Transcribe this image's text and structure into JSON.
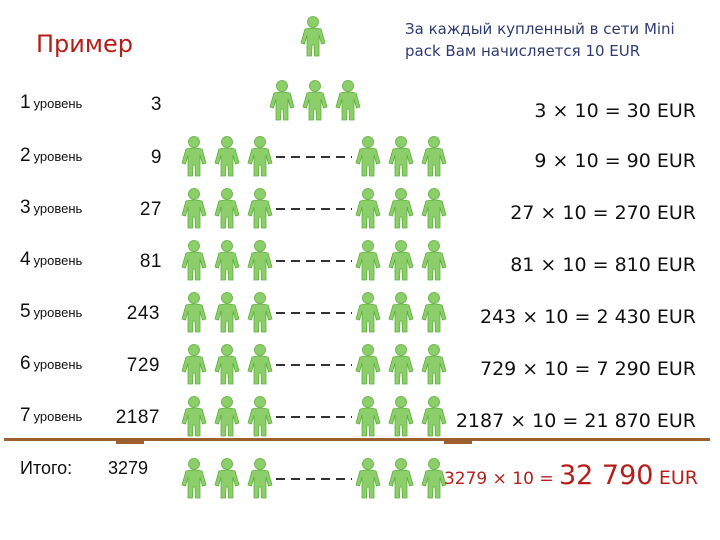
{
  "title": "Пример",
  "note": "За каждый купленный в сети Mini pack Вам начисляется 10 EUR",
  "levels": [
    {
      "num": "1",
      "word": "уровень",
      "count": "3",
      "calc": "3 × 10 = 30 EUR"
    },
    {
      "num": "2",
      "word": "уровень",
      "count": "9",
      "calc": "9 × 10 = 90 EUR"
    },
    {
      "num": "3",
      "word": "уровень",
      "count": "27",
      "calc": "27 × 10 = 270 EUR"
    },
    {
      "num": "4",
      "word": "уровень",
      "count": "81",
      "calc": "81 × 10 = 810 EUR"
    },
    {
      "num": "5",
      "word": "уровень",
      "count": "243",
      "calc": "243 × 10 = 2 430 EUR"
    },
    {
      "num": "6",
      "word": "уровень",
      "count": "729",
      "calc": "729 × 10 = 7 290 EUR"
    },
    {
      "num": "7",
      "word": "уровень",
      "count": "2187",
      "calc": "2187 × 10 = 21 870 EUR"
    }
  ],
  "total": {
    "label": "Итого:",
    "count": "3279",
    "calc_prefix": "3279 × 10 =",
    "calc_big": "32 790",
    "calc_suffix": "EUR"
  },
  "colors": {
    "figure": "#8ccf6a",
    "figure_dark": "#5fae3f",
    "accent": "#b3201c",
    "note": "#2e3c72",
    "divider": "#9c5f2f"
  },
  "icon": "person-icon"
}
